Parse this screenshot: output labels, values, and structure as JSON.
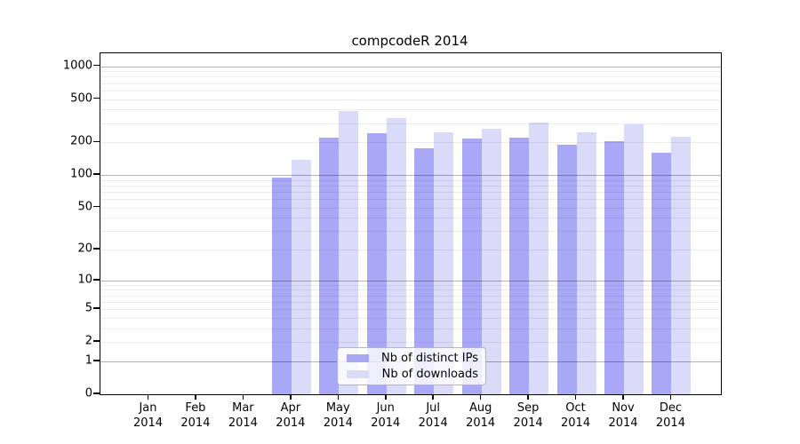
{
  "chart_data": {
    "type": "bar",
    "title": "compcodeR 2014",
    "year_label": "2014",
    "categories": [
      "Jan",
      "Feb",
      "Mar",
      "Apr",
      "May",
      "Jun",
      "Jul",
      "Aug",
      "Sep",
      "Oct",
      "Nov",
      "Dec"
    ],
    "series": [
      {
        "name": "Nb of distinct IPs",
        "color": "#a8a8f7",
        "values": [
          0,
          0,
          0,
          95,
          222,
          245,
          175,
          218,
          222,
          189,
          206,
          160
        ]
      },
      {
        "name": "Nb of downloads",
        "color": "#dadaf9",
        "values": [
          0,
          0,
          0,
          137,
          390,
          336,
          248,
          266,
          306,
          249,
          295,
          227
        ]
      }
    ],
    "y_axis": {
      "scale": "log10(1+x)",
      "tick_values": [
        0,
        1,
        2,
        5,
        10,
        20,
        50,
        100,
        200,
        500,
        1000
      ],
      "tick_labels": [
        "0",
        "1",
        "2",
        "5",
        "10",
        "20",
        "50",
        "100",
        "200",
        "500",
        "1000"
      ],
      "range_top": 1000
    },
    "grid": {
      "shown": true,
      "minor_color": "#ececec",
      "major_color": "#b2b2b2"
    },
    "legend_position": "bottom-center-inside"
  }
}
